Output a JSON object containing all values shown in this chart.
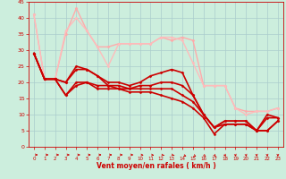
{
  "title": "",
  "xlabel": "Vent moyen/en rafales ( km/h )",
  "xlim": [
    -0.5,
    23.5
  ],
  "ylim": [
    0,
    45
  ],
  "yticks": [
    0,
    5,
    10,
    15,
    20,
    25,
    30,
    35,
    40,
    45
  ],
  "xticks": [
    0,
    1,
    2,
    3,
    4,
    5,
    6,
    7,
    8,
    9,
    10,
    11,
    12,
    13,
    14,
    15,
    16,
    17,
    18,
    19,
    20,
    21,
    22,
    23
  ],
  "bg_color": "#cceedd",
  "grid_color": "#aacccc",
  "series": [
    {
      "x": [
        0,
        1,
        2,
        3,
        4,
        5,
        6,
        7,
        8,
        9,
        10,
        11,
        12,
        13,
        14,
        15,
        16,
        17,
        18,
        19,
        20,
        21,
        22,
        23
      ],
      "y": [
        41,
        21,
        21,
        35,
        43,
        36,
        31,
        31,
        32,
        32,
        32,
        32,
        34,
        33,
        34,
        33,
        19,
        19,
        19,
        12,
        11,
        11,
        11,
        12
      ],
      "color": "#ffaaaa",
      "lw": 1.0
    },
    {
      "x": [
        0,
        1,
        2,
        3,
        4,
        5,
        6,
        7,
        8,
        9,
        10,
        11,
        12,
        13,
        14,
        15,
        16,
        17,
        18,
        19,
        20,
        21,
        22,
        23
      ],
      "y": [
        41,
        21,
        21,
        36,
        40,
        36,
        31,
        25,
        32,
        32,
        32,
        32,
        34,
        34,
        33,
        26,
        19,
        19,
        19,
        12,
        10,
        11,
        11,
        12
      ],
      "color": "#ffbbbb",
      "lw": 1.0
    },
    {
      "x": [
        0,
        1,
        2,
        3,
        4,
        5,
        6,
        7,
        8,
        9,
        10,
        11,
        12,
        13,
        14,
        15,
        16,
        17,
        18,
        19,
        20,
        21,
        22,
        23
      ],
      "y": [
        29,
        21,
        21,
        20,
        25,
        24,
        22,
        20,
        20,
        19,
        20,
        22,
        23,
        24,
        23,
        16,
        10,
        6,
        8,
        8,
        8,
        5,
        10,
        9
      ],
      "color": "#cc0000",
      "lw": 1.2
    },
    {
      "x": [
        0,
        1,
        2,
        3,
        4,
        5,
        6,
        7,
        8,
        9,
        10,
        11,
        12,
        13,
        14,
        15,
        16,
        17,
        18,
        19,
        20,
        21,
        22,
        23
      ],
      "y": [
        29,
        21,
        21,
        20,
        24,
        24,
        22,
        19,
        19,
        18,
        19,
        19,
        20,
        20,
        19,
        16,
        10,
        6,
        8,
        8,
        8,
        5,
        9,
        9
      ],
      "color": "#cc0000",
      "lw": 1.2
    },
    {
      "x": [
        0,
        1,
        2,
        3,
        4,
        5,
        6,
        7,
        8,
        9,
        10,
        11,
        12,
        13,
        14,
        15,
        16,
        17,
        18,
        19,
        20,
        21,
        22,
        23
      ],
      "y": [
        29,
        21,
        21,
        16,
        20,
        20,
        19,
        19,
        18,
        18,
        18,
        18,
        18,
        18,
        16,
        14,
        10,
        6,
        7,
        7,
        7,
        5,
        5,
        8
      ],
      "color": "#cc0000",
      "lw": 1.2
    },
    {
      "x": [
        0,
        1,
        2,
        3,
        4,
        5,
        6,
        7,
        8,
        9,
        10,
        11,
        12,
        13,
        14,
        15,
        16,
        17,
        18,
        19,
        20,
        21,
        22,
        23
      ],
      "y": [
        29,
        21,
        21,
        16,
        19,
        20,
        18,
        18,
        18,
        17,
        17,
        17,
        16,
        15,
        14,
        12,
        9,
        4,
        7,
        7,
        7,
        5,
        5,
        8
      ],
      "color": "#cc0000",
      "lw": 1.2
    }
  ],
  "arrow_color": "#cc0000",
  "n_arrows": 24,
  "arrow_angles_deg": [
    0,
    0,
    0,
    0,
    0,
    0,
    0,
    0,
    0,
    0,
    -15,
    -20,
    -30,
    -40,
    -50,
    -60,
    -70,
    -75,
    -80,
    -85,
    -85,
    -88,
    -88,
    -90
  ]
}
